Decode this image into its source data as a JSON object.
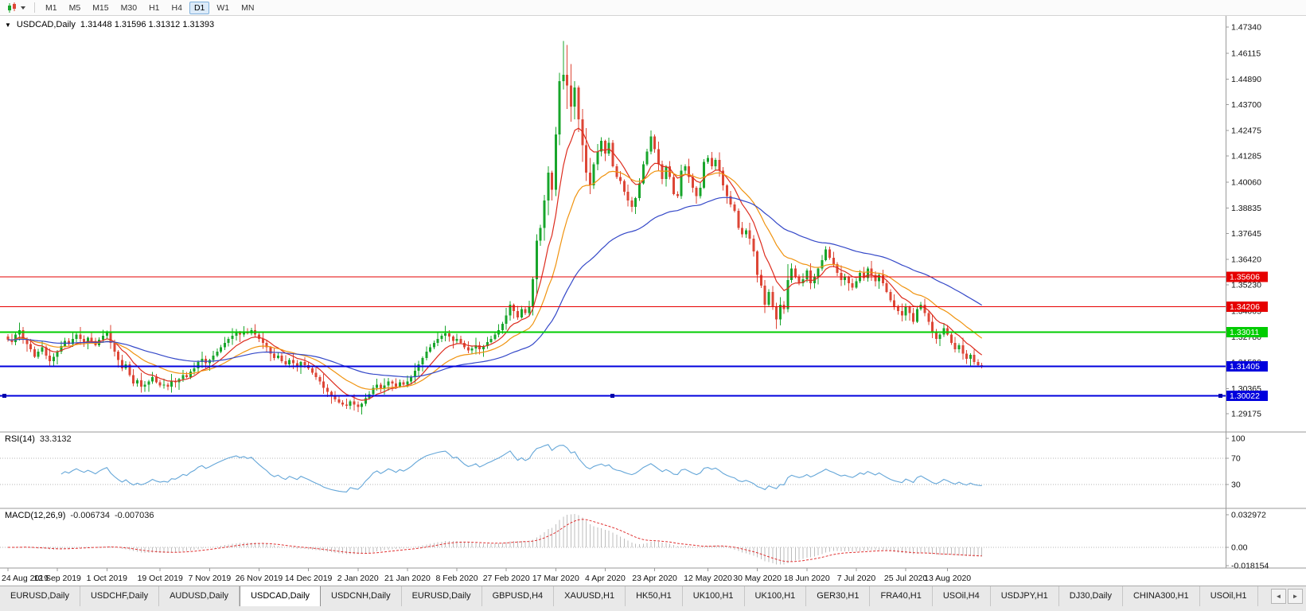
{
  "toolbar": {
    "timeframes": [
      "M1",
      "M5",
      "M15",
      "M30",
      "H1",
      "H4",
      "D1",
      "W1",
      "MN"
    ],
    "active_timeframe": "D1"
  },
  "chart": {
    "title": {
      "dropdown_glyph": "▼",
      "symbol_timeframe": "USDCAD,Daily",
      "ohlc": "1.31448 1.31596 1.31312 1.31393"
    },
    "rsi_label": {
      "name": "RSI(14)",
      "value": "33.3132"
    },
    "macd_label": {
      "name": "MACD(12,26,9)",
      "main": "-0.006734",
      "signal": "-0.007036"
    }
  },
  "chart_data": {
    "type": "candlestick",
    "symbol": "USDCAD",
    "timeframe": "Daily",
    "last_close": 1.31393,
    "price_axis": {
      "ticks": [
        "1.47340",
        "1.46115",
        "1.44890",
        "1.43700",
        "1.42475",
        "1.41285",
        "1.40060",
        "1.38835",
        "1.37645",
        "1.36420",
        "1.35230",
        "1.34005",
        "1.32780",
        "1.31590",
        "1.30365",
        "1.29175"
      ]
    },
    "x_axis": {
      "labels": [
        [
          "24 Aug 2019",
          0
        ],
        [
          "12 Sep 2019",
          13
        ],
        [
          "1 Oct 2019",
          26
        ],
        [
          "19 Oct 2019",
          40
        ],
        [
          "7 Nov 2019",
          53
        ],
        [
          "26 Nov 2019",
          66
        ],
        [
          "14 Dec 2019",
          79
        ],
        [
          "2 Jan 2020",
          92
        ],
        [
          "21 Jan 2020",
          105
        ],
        [
          "8 Feb 2020",
          118
        ],
        [
          "27 Feb 2020",
          131
        ],
        [
          "17 Mar 2020",
          144
        ],
        [
          "4 Apr 2020",
          157
        ],
        [
          "23 Apr 2020",
          170
        ],
        [
          "12 May 2020",
          184
        ],
        [
          "30 May 2020",
          197
        ],
        [
          "18 Jun 2020",
          210
        ],
        [
          "7 Jul 2020",
          223
        ],
        [
          "25 Jul 2020",
          236
        ],
        [
          "13 Aug 2020",
          247
        ]
      ]
    },
    "candles": {
      "first_open": 1.328,
      "closes": [
        1.3265,
        1.3255,
        1.329,
        1.331,
        1.327,
        1.3245,
        1.322,
        1.3185,
        1.321,
        1.323,
        1.319,
        1.3165,
        1.3185,
        1.321,
        1.3235,
        1.326,
        1.3245,
        1.327,
        1.329,
        1.327,
        1.3255,
        1.3275,
        1.326,
        1.324,
        1.3265,
        1.3285,
        1.33,
        1.325,
        1.321,
        1.317,
        1.313,
        1.315,
        1.31,
        1.306,
        1.3075,
        1.3045,
        1.3055,
        1.307,
        1.309,
        1.3065,
        1.305,
        1.3055,
        1.3045,
        1.307,
        1.3065,
        1.308,
        1.31,
        1.309,
        1.3115,
        1.313,
        1.316,
        1.3175,
        1.3155,
        1.317,
        1.319,
        1.321,
        1.323,
        1.325,
        1.327,
        1.3285,
        1.33,
        1.329,
        1.3305,
        1.3295,
        1.331,
        1.329,
        1.327,
        1.325,
        1.323,
        1.32,
        1.318,
        1.319,
        1.3165,
        1.315,
        1.317,
        1.3155,
        1.314,
        1.316,
        1.3145,
        1.313,
        1.311,
        1.309,
        1.307,
        1.304,
        1.302,
        1.3,
        1.2985,
        1.297,
        1.296,
        1.2955,
        1.2975,
        1.296,
        1.295,
        1.2965,
        1.299,
        1.301,
        1.304,
        1.3055,
        1.3035,
        1.305,
        1.307,
        1.306,
        1.3045,
        1.3065,
        1.3055,
        1.307,
        1.309,
        1.312,
        1.315,
        1.318,
        1.321,
        1.323,
        1.325,
        1.327,
        1.3285,
        1.3295,
        1.328,
        1.326,
        1.327,
        1.325,
        1.323,
        1.3215,
        1.3225,
        1.324,
        1.322,
        1.3235,
        1.3255,
        1.327,
        1.329,
        1.331,
        1.334,
        1.338,
        1.343,
        1.34,
        1.337,
        1.341,
        1.339,
        1.342,
        1.355,
        1.373,
        1.379,
        1.392,
        1.405,
        1.397,
        1.423,
        1.448,
        1.451,
        1.446,
        1.436,
        1.445,
        1.43,
        1.418,
        1.405,
        1.399,
        1.409,
        1.415,
        1.42,
        1.414,
        1.419,
        1.408,
        1.403,
        1.401,
        1.396,
        1.392,
        1.389,
        1.393,
        1.4,
        1.409,
        1.415,
        1.422,
        1.416,
        1.409,
        1.402,
        1.408,
        1.403,
        1.395,
        1.394,
        1.406,
        1.408,
        1.403,
        1.398,
        1.394,
        1.398,
        1.41,
        1.412,
        1.408,
        1.411,
        1.406,
        1.399,
        1.394,
        1.39,
        1.387,
        1.379,
        1.376,
        1.378,
        1.374,
        1.368,
        1.357,
        1.352,
        1.343,
        1.349,
        1.342,
        1.336,
        1.343,
        1.341,
        1.3545,
        1.36,
        1.356,
        1.353,
        1.355,
        1.359,
        1.353,
        1.356,
        1.36,
        1.364,
        1.369,
        1.365,
        1.362,
        1.358,
        1.3545,
        1.356,
        1.353,
        1.351,
        1.354,
        1.358,
        1.3555,
        1.36,
        1.357,
        1.354,
        1.357,
        1.353,
        1.349,
        1.345,
        1.342,
        1.34,
        1.338,
        1.342,
        1.339,
        1.335,
        1.341,
        1.343,
        1.339,
        1.335,
        1.33,
        1.327,
        1.329,
        1.332,
        1.329,
        1.325,
        1.322,
        1.324,
        1.32,
        1.3175,
        1.3195,
        1.316,
        1.3145,
        1.31393
      ],
      "wick_pattern": [
        0.0012,
        0.0028,
        0.0009,
        0.0035,
        0.0016,
        0.0006,
        0.0024,
        0.0014
      ],
      "overrides": {
        "138": [
          1.342,
          1.356,
          1.338,
          1.355
        ],
        "139": [
          1.355,
          1.376,
          1.347,
          1.373
        ],
        "141": [
          1.379,
          1.3945,
          1.373,
          1.392
        ],
        "142": [
          1.392,
          1.408,
          1.385,
          1.405
        ],
        "143": [
          1.405,
          1.406,
          1.392,
          1.397
        ],
        "144": [
          1.397,
          1.4265,
          1.394,
          1.423
        ],
        "145": [
          1.423,
          1.452,
          1.418,
          1.448
        ],
        "146": [
          1.448,
          1.4668,
          1.444,
          1.451
        ],
        "147": [
          1.451,
          1.465,
          1.435,
          1.446
        ],
        "148": [
          1.446,
          1.456,
          1.429,
          1.436
        ],
        "149": [
          1.436,
          1.448,
          1.43,
          1.445
        ],
        "150": [
          1.445,
          1.446,
          1.424,
          1.43
        ],
        "151": [
          1.43,
          1.435,
          1.41,
          1.418
        ],
        "152": [
          1.418,
          1.426,
          1.401,
          1.405
        ],
        "153": [
          1.405,
          1.412,
          1.395,
          1.399
        ],
        "199": [
          1.352,
          1.3545,
          1.339,
          1.343
        ],
        "202": [
          1.342,
          1.344,
          1.3315,
          1.336
        ],
        "205": [
          1.341,
          1.362,
          1.3395,
          1.3545
        ]
      }
    },
    "moving_averages": [
      {
        "name": "ma-fast",
        "period": 9,
        "color": "#dd2c1e"
      },
      {
        "name": "ma-medium",
        "period": 21,
        "color": "#f0930f"
      },
      {
        "name": "ma-slow",
        "period": 55,
        "color": "#3448c8"
      }
    ],
    "hlines": [
      {
        "price": 1.35606,
        "label": "1.35606",
        "color": "#e60000",
        "width": 1,
        "selected": false
      },
      {
        "price": 1.34206,
        "label": "1.34206",
        "color": "#e60000",
        "width": 1,
        "selected": false
      },
      {
        "price": 1.33011,
        "label": "1.33011",
        "color": "#00cc00",
        "width": 2,
        "selected": false
      },
      {
        "price": 1.31405,
        "label": "1.31405",
        "color": "#0000dd",
        "width": 2,
        "selected": false
      },
      {
        "price": 1.30022,
        "label": "1.30022",
        "color": "#0000dd",
        "width": 2,
        "selected": true
      }
    ],
    "rsi": {
      "name": "RSI(14)",
      "value": 33.3132,
      "levels": [
        100,
        70,
        30
      ],
      "color": "#64a6d8"
    },
    "macd": {
      "name": "MACD(12,26,9)",
      "main_value": -0.006734,
      "signal_value": -0.007036,
      "axis": [
        "0.032972",
        "0.00",
        "-0.018154"
      ],
      "max": 0.032972,
      "min": -0.018154,
      "hist_color": "#bdbdbd",
      "signal_color": "#e03131"
    }
  },
  "tabs": {
    "items": [
      "EURUSD,Daily",
      "USDCHF,Daily",
      "AUDUSD,Daily",
      "USDCAD,Daily",
      "USDCNH,Daily",
      "EURUSD,Daily",
      "GBPUSD,H4",
      "XAUUSD,H1",
      "HK50,H1",
      "UK100,H1",
      "UK100,H1",
      "GER30,H1",
      "FRA40,H1",
      "USOil,H4",
      "USDJPY,H1",
      "DJ30,Daily",
      "CHINA300,H1",
      "USOil,H1"
    ],
    "active_index": 3,
    "scroll_left": "◄",
    "scroll_right": "►"
  },
  "colors": {
    "up": "#18a52b",
    "down": "#dd4636",
    "wick_up": "#18a52b",
    "wick_down": "#dd4636",
    "axis_line": "#9a9a9a",
    "axis_text": "#111111",
    "level_dotted": "#b6b6b6"
  }
}
